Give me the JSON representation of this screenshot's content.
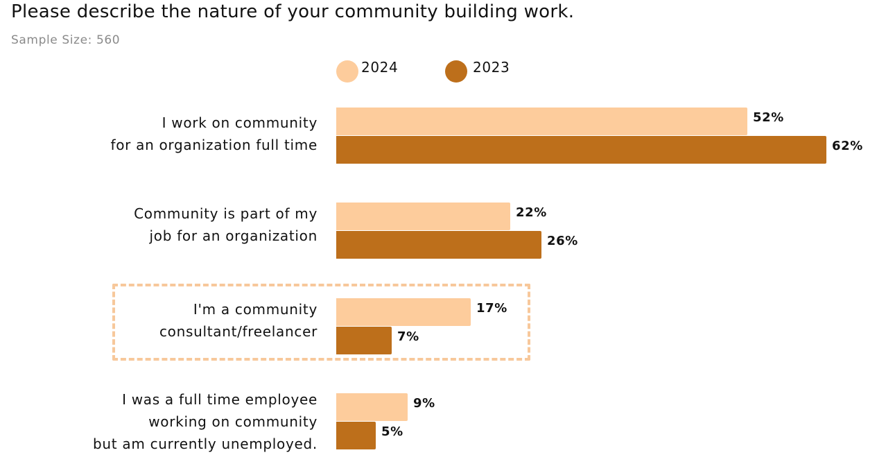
{
  "title": "Please describe the nature of your community building work.",
  "subtitle": "Sample Size: 560",
  "colors": {
    "series_2024": "#fdcc9c",
    "series_2023": "#bd6f1b",
    "highlight_border": "#f7c89b"
  },
  "legend": [
    {
      "label": "2024"
    },
    {
      "label": "2023"
    }
  ],
  "chart_data": {
    "type": "bar",
    "orientation": "horizontal",
    "title": "Please describe the nature of your community building work.",
    "subtitle": "Sample Size: 560",
    "xlim": [
      0,
      62
    ],
    "grid": false,
    "legend_position": "top",
    "categories": [
      [
        "I work on community",
        "for an organization full time"
      ],
      [
        "Community is part of my",
        "job for an organization"
      ],
      [
        "I'm a community",
        "consultant/freelancer"
      ],
      [
        "I was a full time employee",
        "working on community",
        "but am currently unemployed."
      ]
    ],
    "highlighted_category_index": 2,
    "series": [
      {
        "name": "2024",
        "values": [
          52,
          22,
          17,
          9
        ],
        "labels": [
          "52%",
          "22%",
          "17%",
          "9%"
        ]
      },
      {
        "name": "2023",
        "values": [
          62,
          26,
          7,
          5
        ],
        "labels": [
          "62%",
          "26%",
          "7%",
          "5%"
        ]
      }
    ]
  }
}
